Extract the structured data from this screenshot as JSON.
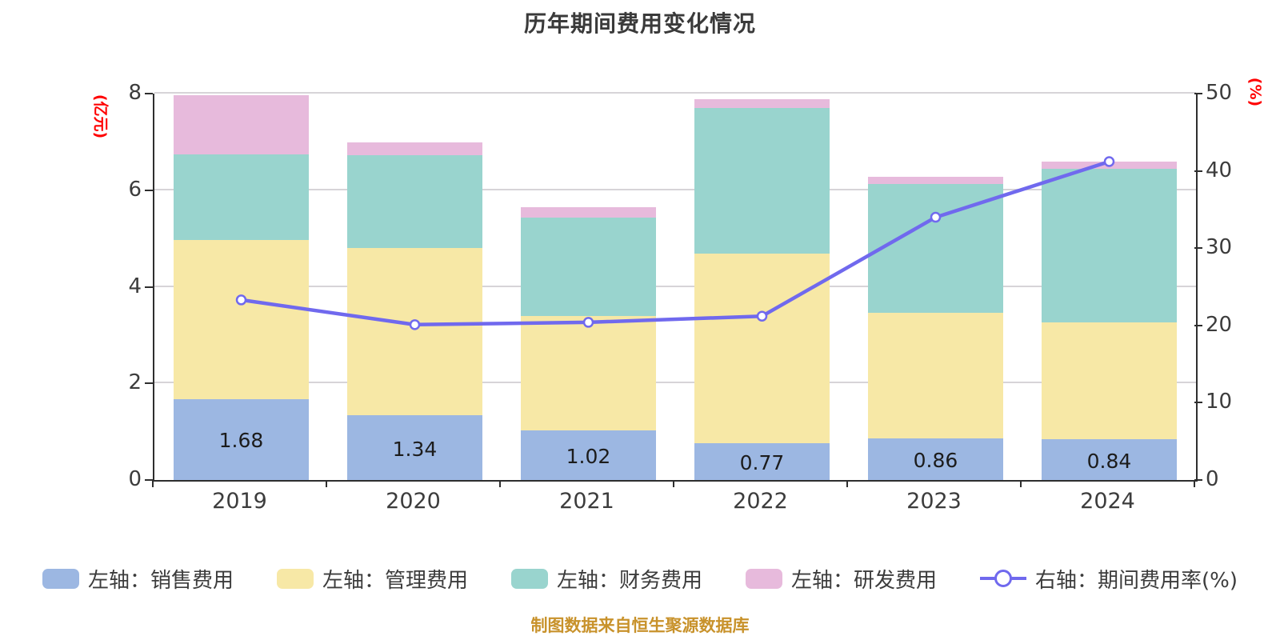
{
  "title": "历年期间费用变化情况",
  "caption": "制图数据来自恒生聚源数据库",
  "axes": {
    "left_unit": "(亿元)",
    "right_unit": "(%)",
    "left_ticks": [
      "0",
      "2",
      "4",
      "6",
      "8"
    ],
    "right_ticks": [
      "0",
      "10",
      "20",
      "30",
      "40",
      "50"
    ],
    "left_max": 8,
    "right_max": 50,
    "grid_values": [
      2,
      4,
      6,
      8
    ]
  },
  "colors": {
    "sales": "#9cb7e2",
    "admin": "#f7e8a6",
    "finance": "#99d4ce",
    "rd": "#e7badc",
    "line": "#7069ee",
    "grid": "#d7d4d8",
    "axis": "#2e2e2e",
    "unit_label": "#ff0000",
    "caption": "#c8922b",
    "text": "#3c3c3c"
  },
  "chart_data": {
    "type": "bar",
    "subtype": "stacked-bars-with-right-axis-line",
    "categories": [
      "2019",
      "2020",
      "2021",
      "2022",
      "2023",
      "2024"
    ],
    "series": [
      {
        "name": "左轴：销售费用",
        "color": "#9cb7e2",
        "values": [
          1.68,
          1.34,
          1.02,
          0.77,
          0.86,
          0.84
        ]
      },
      {
        "name": "左轴：管理费用",
        "color": "#f7e8a6",
        "values": [
          3.29,
          3.47,
          2.38,
          3.92,
          2.61,
          2.43
        ]
      },
      {
        "name": "左轴：财务费用",
        "color": "#99d4ce",
        "values": [
          1.77,
          1.91,
          2.03,
          3.02,
          2.66,
          3.17
        ]
      },
      {
        "name": "左轴：研发费用",
        "color": "#e7badc",
        "values": [
          1.23,
          0.27,
          0.22,
          0.18,
          0.15,
          0.16
        ]
      }
    ],
    "line_series": {
      "name": "右轴：期间费用率(%)",
      "color": "#7069ee",
      "values": [
        23.3,
        20.1,
        20.4,
        21.2,
        34.0,
        41.2
      ]
    },
    "bar_labels": [
      "1.68",
      "1.34",
      "1.02",
      "0.77",
      "0.86",
      "0.84"
    ],
    "title": "历年期间费用变化情况",
    "xlabel": "",
    "ylabel_left": "(亿元)",
    "ylabel_right": "(%)",
    "ylim_left": [
      0,
      8
    ],
    "ylim_right": [
      0,
      50
    ],
    "grid": true,
    "legend_position": "bottom"
  }
}
